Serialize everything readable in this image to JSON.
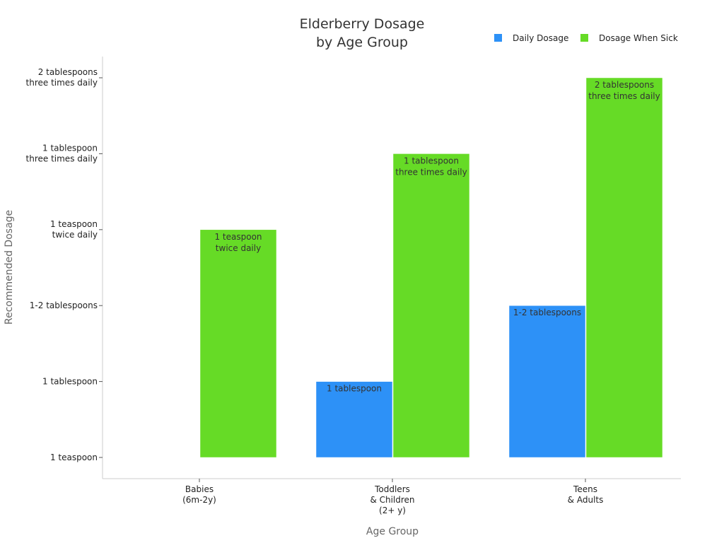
{
  "chart_data": {
    "type": "bar",
    "title": [
      "Elderberry Dosage",
      "by Age Group"
    ],
    "xlabel": "Age Group",
    "ylabel": "Recommended Dosage",
    "y_levels": [
      "1 teaspoon",
      "1 tablespoon",
      "1-2 tablespoons",
      "1 teaspoon\ntwice daily",
      "1 tablespoon\nthree times daily",
      "2 tablespoons\nthree times daily"
    ],
    "categories": [
      "Babies\n(6m-2y)",
      "Toddlers\n& Children\n(2+ y)",
      "Teens\n& Adults"
    ],
    "series": [
      {
        "name": "Daily Dosage",
        "color": "#2d91f7",
        "values": [
          "1 teaspoon",
          "1 tablespoon",
          "1-2 tablespoons"
        ],
        "labels": [
          "",
          "1 tablespoon",
          "1-2 tablespoons"
        ]
      },
      {
        "name": "Dosage When Sick",
        "color": "#66db26",
        "values": [
          "1 teaspoon\ntwice daily",
          "1 tablespoon\nthree times daily",
          "2 tablespoons\nthree times daily"
        ],
        "labels": [
          "1 teaspoon\ntwice daily",
          "1 tablespoon\nthree times daily",
          "2 tablespoons\nthree times daily"
        ]
      }
    ],
    "legend": "top-right",
    "grid": false
  }
}
